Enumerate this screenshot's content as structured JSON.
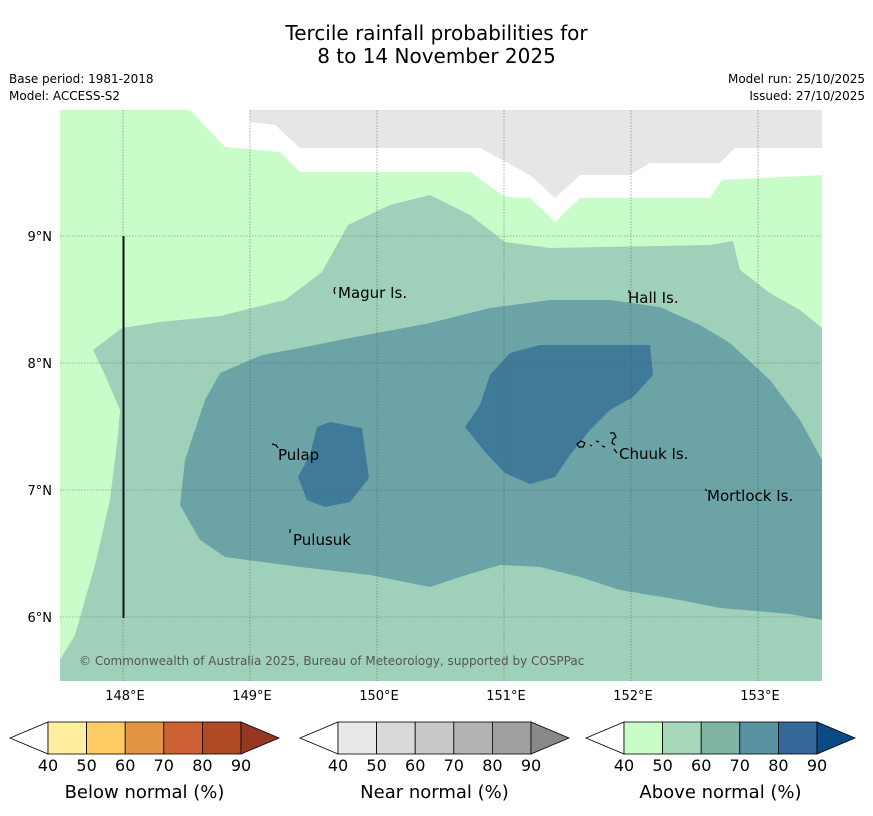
{
  "title": {
    "line1": "Tercile rainfall probabilities for",
    "line2": "8 to 14 November 2025"
  },
  "meta": {
    "base_period": "Base period: 1981-2018",
    "model": "Model: ACCESS-S2",
    "model_run": "Model run: 25/10/2025",
    "issued": "Issued: 27/10/2025"
  },
  "axes": {
    "x_ticks": [
      "148°E",
      "149°E",
      "150°E",
      "151°E",
      "152°E",
      "153°E"
    ],
    "y_ticks": [
      "9°N",
      "8°N",
      "7°N",
      "6°N"
    ]
  },
  "places": [
    "Magur Is.",
    "Hall Is.",
    "Pulap",
    "Chuuk Is.",
    "Mortlock Is.",
    "Pulusuk"
  ],
  "credit": "© Commonwealth of Australia 2025, Bureau of Meteorology, supported by COSPPac",
  "colorbars": [
    {
      "title": "Below normal (%)",
      "ticks": [
        "40",
        "50",
        "60",
        "70",
        "80",
        "90"
      ],
      "colors": [
        "#ffffff",
        "#ffeda0",
        "#fecb65",
        "#e29545",
        "#cd6134",
        "#b24a27",
        "#963821"
      ]
    },
    {
      "title": "Near normal (%)",
      "ticks": [
        "40",
        "50",
        "60",
        "70",
        "80",
        "90"
      ],
      "colors": [
        "#ffffff",
        "#e8e8e8",
        "#d9d9d9",
        "#c8c8c8",
        "#b4b4b4",
        "#a0a0a0",
        "#888888"
      ]
    },
    {
      "title": "Above normal (%)",
      "ticks": [
        "40",
        "50",
        "60",
        "70",
        "80",
        "90"
      ],
      "colors": [
        "#ffffff",
        "#c8fcc8",
        "#a6d8bb",
        "#80b5a6",
        "#5a92a2",
        "#336899",
        "#0b4a85"
      ]
    }
  ],
  "map_colors": {
    "near_40_50": "#e6e6e6",
    "above_40_50": "#c8fcc8",
    "above_50_60": "#9fd1ba",
    "above_60_70": "#6ca3a6",
    "above_70_80": "#3f7a98"
  }
}
